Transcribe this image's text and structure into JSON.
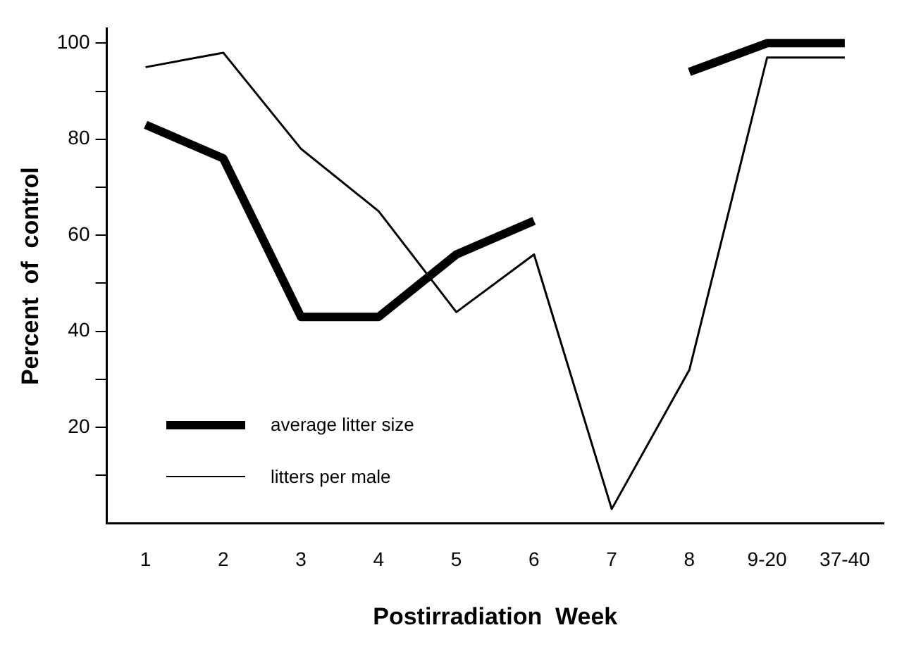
{
  "chart_data": {
    "type": "line",
    "xlabel": "Postirradiation  Week",
    "ylabel": "Percent  of  control",
    "categories": [
      "1",
      "2",
      "3",
      "4",
      "5",
      "6",
      "7",
      "8",
      "9-20",
      "37-40"
    ],
    "series": [
      {
        "name": "average litter size",
        "color": "#000000",
        "values": [
          83,
          76,
          43,
          43,
          56,
          63,
          null,
          94,
          100,
          100
        ]
      },
      {
        "name": "litters per male",
        "color": "#000000",
        "values": [
          95,
          98,
          78,
          65,
          44,
          56,
          3,
          32,
          97,
          97
        ]
      }
    ],
    "ylim": [
      0,
      103
    ],
    "yticks": [
      {
        "value": 10,
        "label": null
      },
      20,
      {
        "value": 30,
        "label": null
      },
      40,
      {
        "value": 50,
        "label": null
      },
      60,
      {
        "value": 70,
        "label": null
      },
      80,
      {
        "value": 90,
        "label": null
      },
      100
    ],
    "grid": false,
    "legend": "bottom left",
    "marker": "none",
    "line_style": "solid"
  }
}
